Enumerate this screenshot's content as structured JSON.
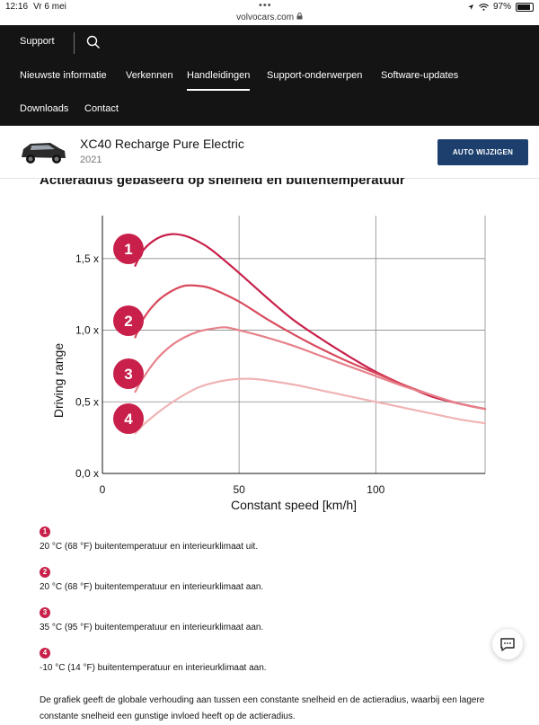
{
  "status_bar": {
    "time": "12:16",
    "date": "Vr 6 mei",
    "url": "volvocars.com",
    "battery": "97%"
  },
  "nav": {
    "support": "Support",
    "items": [
      "Nieuwste informatie",
      "Verkennen",
      "Handleidingen",
      "Support-onderwerpen",
      "Software-updates",
      "Downloads",
      "Contact"
    ],
    "active": "Handleidingen"
  },
  "car": {
    "title": "XC40 Recharge Pure Electric",
    "year": "2021",
    "change_button": "AUTO WIJZIGEN"
  },
  "section_title": "Actieradius gebaseerd op snelheid en buitentemperatuur",
  "chart_data": {
    "type": "line",
    "title": "",
    "xlabel": "Constant speed [km/h]",
    "ylabel": "Driving range",
    "xlim": [
      0,
      140
    ],
    "ylim": [
      0,
      1.8
    ],
    "x_ticks": [
      "0",
      "50",
      "100"
    ],
    "y_ticks": [
      "0,0 x",
      "0,5 x",
      "1,0 x",
      "1,5 x"
    ],
    "grid": true,
    "series": [
      {
        "name": "1",
        "color": "#c8204b",
        "x": [
          12,
          15,
          20,
          25,
          30,
          35,
          40,
          50,
          60,
          70,
          80,
          90,
          100,
          110,
          120,
          130,
          140
        ],
        "y": [
          1.45,
          1.56,
          1.64,
          1.67,
          1.66,
          1.62,
          1.56,
          1.4,
          1.23,
          1.07,
          0.94,
          0.82,
          0.71,
          0.62,
          0.54,
          0.49,
          0.45
        ]
      },
      {
        "name": "2",
        "color": "#d94b5e",
        "x": [
          12,
          15,
          20,
          25,
          30,
          35,
          40,
          50,
          60,
          70,
          80,
          90,
          100,
          110,
          120,
          130,
          140
        ],
        "y": [
          0.95,
          1.08,
          1.2,
          1.27,
          1.31,
          1.31,
          1.29,
          1.2,
          1.08,
          0.97,
          0.87,
          0.78,
          0.7,
          0.62,
          0.55,
          0.49,
          0.45
        ]
      },
      {
        "name": "3",
        "color": "#e6818a",
        "x": [
          12,
          15,
          20,
          25,
          30,
          35,
          40,
          45,
          50,
          60,
          70,
          80,
          90,
          100,
          110,
          120,
          130,
          140
        ],
        "y": [
          0.57,
          0.67,
          0.8,
          0.89,
          0.95,
          0.99,
          1.01,
          1.02,
          1.0,
          0.95,
          0.89,
          0.82,
          0.75,
          0.68,
          0.61,
          0.55,
          0.49,
          0.45
        ]
      },
      {
        "name": "4",
        "color": "#f0b3b3",
        "x": [
          12,
          15,
          20,
          25,
          30,
          35,
          40,
          45,
          50,
          55,
          60,
          70,
          80,
          90,
          100,
          110,
          120,
          130,
          140
        ],
        "y": [
          0.28,
          0.34,
          0.42,
          0.49,
          0.55,
          0.6,
          0.63,
          0.65,
          0.66,
          0.66,
          0.65,
          0.62,
          0.58,
          0.54,
          0.5,
          0.46,
          0.42,
          0.38,
          0.35
        ]
      }
    ],
    "colors": {
      "curve1": "#c8204b",
      "curve2": "#d94b5e",
      "curve3": "#e6818a",
      "curve4": "#f0b3b3",
      "badge": "#c8204b"
    }
  },
  "legend": [
    {
      "num": "1",
      "text": "20 °C (68 °F) buitentemperatuur en interieurklimaat uit."
    },
    {
      "num": "2",
      "text": "20 °C (68 °F) buitentemperatuur en interieurklimaat aan."
    },
    {
      "num": "3",
      "text": "35 °C (95 °F) buitentemperatuur en interieurklimaat aan."
    },
    {
      "num": "4",
      "text": "-10 °C (14 °F) buitentemperatuur en interieurklimaat aan."
    }
  ],
  "description": "De grafiek geeft de globale verhouding aan tussen een constante snelheid en de actieradius, waarbij een lagere constante snelheid een gunstige invloed heeft op de actieradius.",
  "icons": {
    "search": "search-icon",
    "wifi": "wifi-icon",
    "lock": "lock-icon",
    "chat": "chat-icon",
    "location": "location-icon"
  }
}
